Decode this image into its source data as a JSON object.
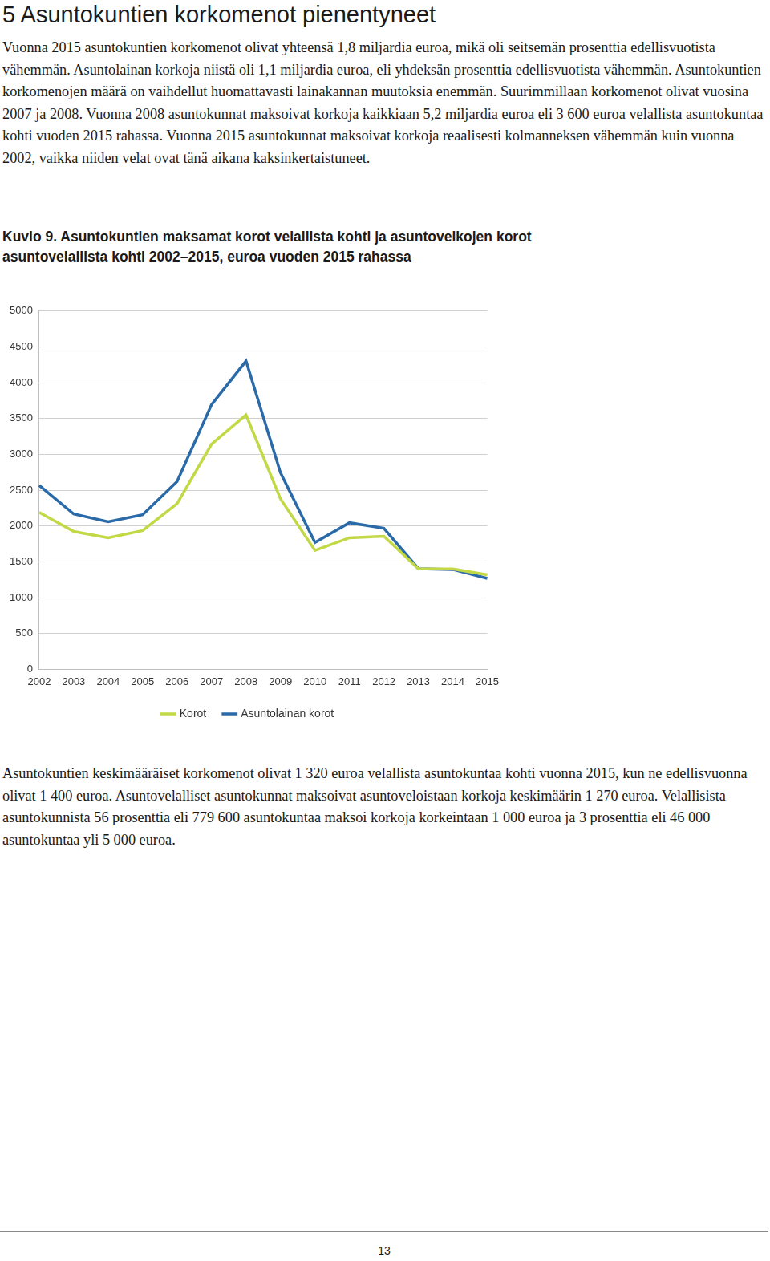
{
  "document": {
    "heading": "5 Asuntokuntien korkomenot pienentyneet",
    "intro": "Vuonna 2015 asuntokuntien korkomenot olivat yhteensä 1,8 miljardia euroa, mikä oli seitsemän prosenttia edellisvuotista vähemmän. Asuntolainan korkoja niistä oli 1,1 miljardia euroa, eli yhdeksän prosenttia edellisvuotista vähemmän. Asuntokuntien korkomenojen määrä on vaihdellut huomattavasti lainakannan muutoksia enemmän. Suurimmillaan korkomenot olivat vuosina 2007 ja 2008. Vuonna 2008 asuntokunnat maksoivat korkoja kaikkiaan 5,2 miljardia euroa eli 3 600 euroa velallista asuntokuntaa kohti vuoden 2015 rahassa. Vuonna 2015 asuntokunnat maksoivat korkoja reaalisesti kolmanneksen vähemmän kuin vuonna 2002, vaikka niiden velat ovat tänä aikana kaksinkertaistuneet.",
    "figure_caption": "Kuvio 9. Asuntokuntien maksamat korot velallista kohti ja asuntovelkojen korot asuntovelallista kohti 2002–2015, euroa vuoden 2015 rahassa",
    "body": "Asuntokuntien keskimääräiset korkomenot olivat 1 320 euroa velallista asuntokuntaa kohti vuonna 2015, kun ne edellisvuonna olivat 1 400 euroa. Asuntovelalliset asuntokunnat maksoivat asuntoveloistaan korkoja keskimäärin 1 270 euroa. Velallisista asuntokunnista 56 prosenttia eli 779 600 asuntokuntaa maksoi korkoja korkeintaan 1 000 euroa ja 3 prosenttia eli 46 000 asuntokuntaa yli 5 000 euroa.",
    "page_number": "13"
  },
  "chart_data": {
    "type": "line",
    "categories": [
      "2002",
      "2003",
      "2004",
      "2005",
      "2006",
      "2007",
      "2008",
      "2009",
      "2010",
      "2011",
      "2012",
      "2013",
      "2014",
      "2015"
    ],
    "series": [
      {
        "name": "Korot",
        "color": "#c2d845",
        "values": [
          2190,
          1925,
          1836,
          1936,
          2312,
          3142,
          3551,
          2378,
          1659,
          1836,
          1858,
          1405,
          1400,
          1320
        ]
      },
      {
        "name": "Asuntolainan korot",
        "color": "#2a6aa8",
        "values": [
          2566,
          2168,
          2058,
          2157,
          2622,
          3695,
          4303,
          2743,
          1770,
          2046,
          1969,
          1405,
          1394,
          1270
        ]
      }
    ],
    "ylim": [
      0,
      5000
    ],
    "yticks": [
      0,
      500,
      1000,
      1500,
      2000,
      2500,
      3000,
      3500,
      4000,
      4500,
      5000
    ],
    "grid": true,
    "legend": "bottom"
  }
}
